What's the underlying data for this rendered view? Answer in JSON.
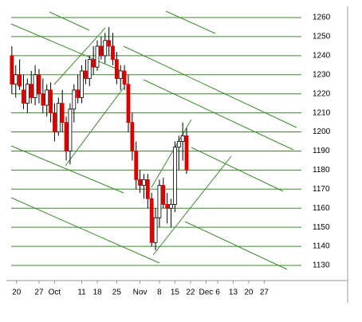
{
  "chart_data": {
    "type": "candlestick",
    "x": [
      0,
      1,
      2,
      3,
      4,
      5,
      6,
      7,
      8,
      9,
      10,
      11,
      12,
      13,
      14,
      15,
      16,
      17,
      18,
      19,
      20,
      21,
      22,
      23,
      24,
      25,
      26,
      27,
      28,
      29,
      30,
      31,
      32,
      33,
      34,
      35,
      36,
      37,
      38,
      39,
      40,
      41,
      42,
      43,
      44,
      45
    ],
    "open": [
      1240,
      1225,
      1230,
      1222,
      1215,
      1225,
      1218,
      1230,
      1220,
      1214,
      1222,
      1210,
      1200,
      1215,
      1205,
      1190,
      1212,
      1222,
      1218,
      1232,
      1228,
      1238,
      1234,
      1245,
      1240,
      1248,
      1245,
      1238,
      1228,
      1232,
      1225,
      1205,
      1190,
      1175,
      1172,
      1175,
      1165,
      1142,
      1155,
      1172,
      1162,
      1160,
      1162,
      1192,
      1195,
      1198
    ],
    "high": [
      1245,
      1235,
      1238,
      1230,
      1228,
      1232,
      1235,
      1233,
      1228,
      1225,
      1226,
      1215,
      1218,
      1222,
      1208,
      1215,
      1225,
      1230,
      1235,
      1238,
      1240,
      1245,
      1248,
      1250,
      1252,
      1255,
      1252,
      1242,
      1235,
      1235,
      1230,
      1210,
      1195,
      1180,
      1178,
      1178,
      1168,
      1160,
      1175,
      1176,
      1168,
      1165,
      1195,
      1198,
      1205,
      1202
    ],
    "low": [
      1220,
      1218,
      1222,
      1212,
      1210,
      1215,
      1214,
      1215,
      1210,
      1208,
      1205,
      1195,
      1198,
      1200,
      1185,
      1183,
      1205,
      1215,
      1215,
      1225,
      1224,
      1230,
      1232,
      1238,
      1236,
      1240,
      1235,
      1225,
      1222,
      1222,
      1200,
      1185,
      1170,
      1168,
      1165,
      1160,
      1140,
      1138,
      1150,
      1160,
      1152,
      1150,
      1158,
      1180,
      1185,
      1178
    ],
    "close": [
      1225,
      1230,
      1224,
      1215,
      1225,
      1218,
      1230,
      1220,
      1214,
      1222,
      1210,
      1200,
      1215,
      1205,
      1190,
      1212,
      1222,
      1218,
      1232,
      1228,
      1238,
      1234,
      1245,
      1240,
      1248,
      1245,
      1238,
      1228,
      1232,
      1225,
      1205,
      1190,
      1175,
      1172,
      1175,
      1165,
      1142,
      1155,
      1172,
      1162,
      1160,
      1162,
      1192,
      1195,
      1198,
      1180
    ],
    "up_color": "#ffffff",
    "down_color": "#dd0000",
    "xlim": [
      -1,
      76
    ],
    "xticks": [
      {
        "value": 1.2,
        "label": "20"
      },
      {
        "value": 7,
        "label": "27"
      },
      {
        "value": 11,
        "label": "Oct"
      },
      {
        "value": 18,
        "label": "11"
      },
      {
        "value": 22,
        "label": "18"
      },
      {
        "value": 27,
        "label": "25"
      },
      {
        "value": 33,
        "label": "Nov"
      },
      {
        "value": 38,
        "label": "8"
      },
      {
        "value": 42,
        "label": "15"
      },
      {
        "value": 46,
        "label": "22"
      },
      {
        "value": 50,
        "label": "Dec"
      },
      {
        "value": 53,
        "label": "6"
      },
      {
        "value": 57,
        "label": "13"
      },
      {
        "value": 61,
        "label": "20"
      },
      {
        "value": 65,
        "label": "27"
      }
    ],
    "ylim": [
      1130,
      1260
    ],
    "yticks": [
      1130,
      1140,
      1150,
      1160,
      1170,
      1180,
      1190,
      1200,
      1210,
      1220,
      1230,
      1240,
      1250,
      1260
    ],
    "grid": true,
    "grid_color": "#3a8a2a"
  }
}
